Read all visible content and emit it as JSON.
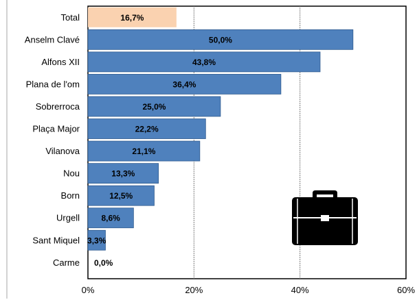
{
  "chart_data": {
    "type": "bar",
    "orientation": "horizontal",
    "title": "",
    "xlabel": "",
    "ylabel": "",
    "categories": [
      "Total",
      "Anselm Clavé",
      "Alfons XII",
      "Plana de l'om",
      "Sobrerroca",
      "Plaça Major",
      "Vilanova",
      "Nou",
      "Born",
      "Urgell",
      "Sant Miquel",
      "Carme"
    ],
    "values": [
      16.7,
      50.0,
      43.8,
      36.4,
      25.0,
      22.2,
      21.1,
      13.3,
      12.5,
      8.6,
      3.3,
      0.0
    ],
    "data_labels": [
      "16,7%",
      "50,0%",
      "43,8%",
      "36,4%",
      "25,0%",
      "22,2%",
      "21,1%",
      "13,3%",
      "12,5%",
      "8,6%",
      "3,3%",
      "0,0%"
    ],
    "xlim": [
      0,
      60
    ],
    "x_ticks": [
      0,
      20,
      40,
      60
    ],
    "x_tick_labels": [
      "0%",
      "20%",
      "40%",
      "60%"
    ],
    "grid": "vertical dashed lines at 20% and 40%",
    "highlight_category": "Total",
    "colors": {
      "highlight_bar": "#FAD2B0",
      "bar": "#4F81BD",
      "bar_edge": "#2F5B8F",
      "gridline": "#7F7F7F",
      "frame": "#000000"
    },
    "decoration": {
      "icon": "briefcase-icon",
      "color": "#000000"
    }
  }
}
